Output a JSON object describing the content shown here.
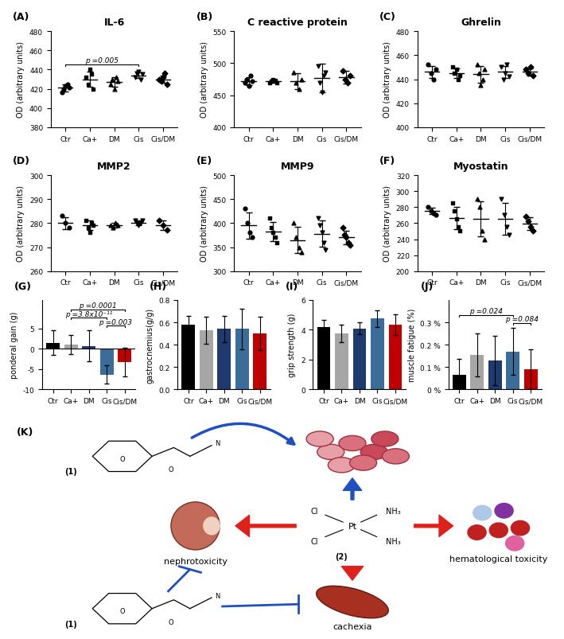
{
  "chart_data": [
    {
      "type": "dot_plot",
      "panel": "(A)",
      "title": "IL-6",
      "y_label": "OD (arbitrary units)",
      "categories": [
        "Ctr",
        "Ca+",
        "DM",
        "Cis",
        "Cis/DM"
      ],
      "points": [
        [
          416,
          420,
          423,
          425,
          421
        ],
        [
          432,
          425,
          440,
          435,
          420
        ],
        [
          425,
          430,
          420,
          432,
          428
        ],
        [
          432,
          436,
          438,
          430,
          435
        ],
        [
          430,
          428,
          432,
          436,
          425
        ]
      ],
      "means": [
        421,
        430,
        427,
        434,
        430
      ],
      "sd": [
        3.5,
        8,
        5,
        3,
        4
      ],
      "ylim": [
        380,
        480
      ],
      "yticks": [
        380,
        400,
        420,
        440,
        460,
        480
      ],
      "annotations": [
        {
          "text": "p =0.005",
          "from": "Ctr",
          "to": "Cis"
        }
      ]
    },
    {
      "type": "dot_plot",
      "panel": "(B)",
      "title": "C reactive protein",
      "y_label": "OD (arbitrary units)",
      "categories": [
        "Ctr",
        "Ca+",
        "DM",
        "Cis",
        "Cis/DM"
      ],
      "points": [
        [
          470,
          475,
          465,
          480,
          472
        ],
        [
          470,
          472,
          475,
          473,
          470
        ],
        [
          485,
          470,
          460,
          475
        ],
        [
          495,
          470,
          455,
          480,
          485
        ],
        [
          488,
          475,
          470,
          480
        ]
      ],
      "means": [
        472,
        472,
        472,
        477,
        478
      ],
      "sd": [
        6,
        2.5,
        12,
        22,
        10
      ],
      "ylim": [
        400,
        550
      ],
      "yticks": [
        400,
        450,
        500,
        550
      ],
      "annotations": []
    },
    {
      "type": "dot_plot",
      "panel": "(C)",
      "title": "Ghrelin",
      "y_label": "OD (arbitrary units)",
      "categories": [
        "Ctr",
        "Ca+",
        "DM",
        "Cis",
        "Cis/DM"
      ],
      "points": [
        [
          452,
          445,
          440,
          448
        ],
        [
          450,
          445,
          448,
          440,
          443
        ],
        [
          452,
          445,
          435,
          440,
          448
        ],
        [
          450,
          440,
          445,
          452,
          442
        ],
        [
          448,
          445,
          450,
          443
        ]
      ],
      "means": [
        446,
        445,
        444,
        446,
        446
      ],
      "sd": [
        5,
        4,
        7,
        5,
        3
      ],
      "ylim": [
        400,
        480
      ],
      "yticks": [
        400,
        420,
        440,
        460,
        480
      ],
      "annotations": []
    },
    {
      "type": "dot_plot",
      "panel": "(D)",
      "title": "MMP2",
      "y_label": "OD (arbitrary units)",
      "categories": [
        "Ctr",
        "Ca+",
        "DM",
        "Cis",
        "Cis/DM"
      ],
      "points": [
        [
          283,
          280,
          278
        ],
        [
          281,
          278,
          276,
          280,
          279
        ],
        [
          279,
          278,
          280,
          279
        ],
        [
          281,
          280,
          279,
          280,
          281
        ],
        [
          281,
          279,
          277
        ]
      ],
      "means": [
        280,
        279,
        279,
        280,
        279
      ],
      "sd": [
        2.5,
        2,
        1,
        1,
        2
      ],
      "ylim": [
        260,
        300
      ],
      "yticks": [
        260,
        270,
        280,
        290,
        300
      ],
      "annotations": []
    },
    {
      "type": "dot_plot",
      "panel": "(E)",
      "title": "MMP9",
      "y_label": "OD (arbitrary units)",
      "categories": [
        "Ctr",
        "Ca+",
        "DM",
        "Cis",
        "Cis/DM"
      ],
      "points": [
        [
          430,
          400,
          380,
          370
        ],
        [
          410,
          390,
          380,
          370,
          360
        ],
        [
          400,
          370,
          350,
          340
        ],
        [
          410,
          395,
          380,
          360,
          345
        ],
        [
          390,
          375,
          370,
          360,
          355
        ]
      ],
      "means": [
        395,
        382,
        365,
        378,
        370
      ],
      "sd": [
        27,
        20,
        27,
        27,
        14
      ],
      "ylim": [
        300,
        500
      ],
      "yticks": [
        300,
        350,
        400,
        450,
        500
      ],
      "annotations": []
    },
    {
      "type": "dot_plot",
      "panel": "(F)",
      "title": "Myostatin",
      "y_label": "OD (arbitrary units)",
      "categories": [
        "Ctr",
        "Ca+",
        "DM",
        "Cis",
        "Cis/DM"
      ],
      "points": [
        [
          280,
          275,
          272,
          270
        ],
        [
          285,
          275,
          265,
          255,
          250
        ],
        [
          290,
          280,
          250,
          240
        ],
        [
          290,
          270,
          255,
          245
        ],
        [
          268,
          262,
          255,
          250
        ]
      ],
      "means": [
        275,
        266,
        265,
        265,
        259
      ],
      "sd": [
        4,
        14,
        22,
        20,
        8
      ],
      "ylim": [
        200,
        320
      ],
      "yticks": [
        200,
        220,
        240,
        260,
        280,
        300,
        320
      ],
      "annotations": []
    },
    {
      "type": "bar",
      "panel": "(G)",
      "y_label": "ponderal gain (g)",
      "categories": [
        "Ctr",
        "Ca+",
        "DM",
        "Cis",
        "Cis/DM"
      ],
      "values": [
        1.5,
        1.0,
        0.7,
        -6.3,
        -3.2
      ],
      "error": [
        3.0,
        2.3,
        3.8,
        2.2,
        3.5
      ],
      "colors": [
        "#000000",
        "#a6a6a6",
        "#1f3a6e",
        "#3a6d9a",
        "#c00000"
      ],
      "ylim": [
        -10,
        12
      ],
      "yticks": [
        -10,
        -5,
        0,
        5
      ],
      "annotations": [
        {
          "text": "p =0.003",
          "from": "Cis",
          "to": "Cis/DM"
        },
        {
          "text": "p =3.8x10⁻¹¹",
          "from": "Ca+",
          "to": "Cis"
        },
        {
          "text": "p =0.0001",
          "from": "Ca+",
          "to": "Cis/DM"
        }
      ]
    },
    {
      "type": "bar",
      "panel": "(H)",
      "y_label": "gastrocnemius(g/g)",
      "categories": [
        "Ctr",
        "Ca+",
        "DM",
        "Cis",
        "Cis/DM"
      ],
      "values": [
        0.58,
        0.53,
        0.54,
        0.54,
        0.5
      ],
      "error": [
        0.08,
        0.12,
        0.12,
        0.18,
        0.15
      ],
      "colors": [
        "#000000",
        "#a6a6a6",
        "#1f3a6e",
        "#3a6d9a",
        "#c00000"
      ],
      "ylim": [
        0,
        0.8
      ],
      "yticks": [
        {
          "value": 0,
          "label": "0.0"
        },
        0.2,
        0.4,
        0.6,
        0.8
      ],
      "annotations": []
    },
    {
      "type": "bar",
      "panel": "(I)",
      "y_label": "grip strength (g)",
      "categories": [
        "Ctr",
        "Ca+",
        "DM",
        "Cis",
        "Cis/DM"
      ],
      "values": [
        4.2,
        3.75,
        4.1,
        4.75,
        4.35
      ],
      "error": [
        0.45,
        0.6,
        0.4,
        0.55,
        0.7
      ],
      "colors": [
        "#000000",
        "#a6a6a6",
        "#1f3a6e",
        "#3a6d9a",
        "#c00000"
      ],
      "ylim": [
        0,
        6
      ],
      "yticks": [
        0,
        2,
        4,
        6
      ],
      "annotations": []
    },
    {
      "type": "bar",
      "panel": "(J)",
      "y_label": "muscle fatigue (%)",
      "categories": [
        "Ctr",
        "Ca+",
        "DM",
        "Cis",
        "Cis/DM"
      ],
      "values": [
        0.065,
        0.155,
        0.13,
        0.17,
        0.09
      ],
      "error": [
        0.07,
        0.095,
        0.11,
        0.105,
        0.09
      ],
      "colors": [
        "#000000",
        "#a6a6a6",
        "#1f3a6e",
        "#3a6d9a",
        "#c00000"
      ],
      "ylim": [
        0,
        0.4
      ],
      "yticks": [
        {
          "value": 0,
          "label": "0 %"
        },
        {
          "value": 0.1,
          "label": "0.1 %"
        },
        {
          "value": 0.2,
          "label": "0.2 %"
        },
        {
          "value": 0.3,
          "label": "0.3 %"
        }
      ],
      "annotations": [
        {
          "text": "p =0.084",
          "from": "Cis",
          "to": "Cis/DM"
        },
        {
          "text": "p =0.024",
          "from": "Ctr",
          "to": "Cis"
        }
      ]
    }
  ],
  "diagram": {
    "panel": "(K)",
    "compound_1": {
      "label": "(1)",
      "atoms": [
        "O",
        "O",
        "N"
      ]
    },
    "compound_2": {
      "label": "(2)",
      "atoms": [
        "Cl",
        "Cl",
        "Pt",
        "NH₃",
        "NH₃"
      ]
    },
    "effects": [
      "nephrotoxicity",
      "hematological toxicity",
      "cachexia"
    ]
  }
}
